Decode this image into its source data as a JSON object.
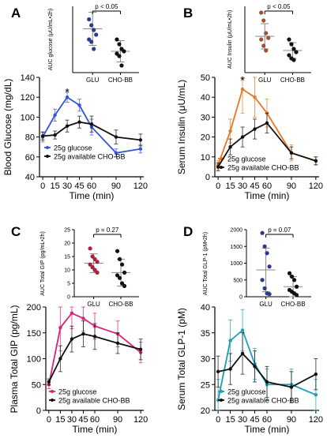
{
  "chart_data": [
    {
      "panel": "A",
      "inset": {
        "type": "scatter",
        "ylabel": "AUC glucose (μU/mL•2h)",
        "categories": [
          "GLU",
          "CHO-BB"
        ],
        "ylim": [
          0,
          2800
        ],
        "points": [
          [
            2250,
            2000,
            1800,
            1600,
            1400,
            1300,
            1000
          ],
          [
            1400,
            1200,
            1000,
            900,
            800,
            700,
            300
          ]
        ],
        "mean": [
          1850,
          900
        ],
        "sd": [
          700,
          450
        ],
        "p_text": "p < 0.05",
        "colors": [
          "#2e3a8c",
          "#111111"
        ]
      },
      "main": {
        "type": "line",
        "x": [
          0,
          15,
          30,
          45,
          60,
          90,
          120
        ],
        "xticks": [
          "0",
          "15",
          "30",
          "45",
          "60",
          "90",
          "120"
        ],
        "xlabel": "Time (min)",
        "ylabel": "Blood Glucose (mg/dL)",
        "ylim": [
          40,
          140
        ],
        "yticks": [
          40,
          60,
          80,
          100,
          120,
          140
        ],
        "series": [
          {
            "name": "25g glucose",
            "color": "#3355dd",
            "values": [
              80,
              102,
              120,
              112,
              90,
              64,
              68
            ],
            "err": [
              5,
              6,
              5,
              6,
              8,
              4,
              4
            ]
          },
          {
            "name": "25g available CHO-BB",
            "color": "#111111",
            "values": [
              81,
              82,
              91,
              95,
              93,
              80,
              77
            ],
            "err": [
              4,
              4,
              6,
              6,
              8,
              7,
              6
            ]
          }
        ],
        "annotations": [
          {
            "x": 30,
            "y": 126,
            "text": "*"
          }
        ]
      }
    },
    {
      "panel": "B",
      "inset": {
        "type": "scatter",
        "ylabel": "AUC Insulin (μU/mL•2h)",
        "categories": [
          "GLU",
          "CHO-BB"
        ],
        "ylim": [
          0,
          4200
        ],
        "points": [
          [
            3800,
            3300,
            2500,
            2200,
            2100,
            1700,
            1400
          ],
          [
            2100,
            1800,
            1500,
            1300,
            1100,
            900,
            800
          ]
        ],
        "mean": [
          2300,
          1400
        ],
        "sd": [
          800,
          500
        ],
        "p_text": "p < 0.05",
        "colors": [
          "#a0522d",
          "#111111"
        ]
      },
      "main": {
        "type": "line",
        "x": [
          0,
          15,
          30,
          45,
          60,
          90,
          120
        ],
        "xticks": [
          "0",
          "15",
          "30",
          "45",
          "60",
          "90",
          "120"
        ],
        "xlabel": "Time (min)",
        "ylabel": "Serum Insulin  (μU/mL)",
        "ylim": [
          0,
          50
        ],
        "yticks": [
          0,
          10,
          20,
          30,
          40,
          50
        ],
        "series": [
          {
            "name": "25g glucose",
            "color": "#e87722",
            "values": [
              6,
              23,
              44,
              40,
              32,
              12,
              8
            ],
            "err": [
              2,
              6,
              12,
              10,
              7,
              4,
              2
            ]
          },
          {
            "name": "25g available CHO-BB",
            "color": "#111111",
            "values": [
              5,
              15,
              20,
              24,
              27,
              12,
              8
            ],
            "err": [
              2,
              4,
              5,
              5,
              5,
              3,
              2
            ]
          }
        ],
        "annotations": [
          {
            "x": 30,
            "y": 49,
            "text": "*"
          }
        ]
      }
    },
    {
      "panel": "C",
      "inset": {
        "type": "scatter",
        "ylabel": "AUC Total GIP (pg/mL•2h)",
        "categories": [
          "GLU",
          "CHO-BB"
        ],
        "ylim": [
          0,
          25
        ],
        "yticks": [
          0,
          5,
          10,
          15,
          20,
          25
        ],
        "points": [
          [
            18,
            15,
            14,
            13,
            12,
            11,
            10,
            9
          ],
          [
            17,
            14,
            12,
            9,
            8,
            7,
            5,
            4
          ]
        ],
        "mean": [
          12.5,
          9
        ],
        "sd": [
          3.5,
          5
        ],
        "p_text": "p = 0.27",
        "colors": [
          "#a5243c",
          "#111111"
        ]
      },
      "main": {
        "type": "line",
        "x": [
          0,
          15,
          30,
          45,
          60,
          90,
          120
        ],
        "xticks": [
          "0",
          "15",
          "30",
          "45",
          "60",
          "90",
          "120"
        ],
        "xlabel": "Time (min)",
        "ylabel": "Plasma Total GIP  (pg/mL)",
        "ylim": [
          0,
          200
        ],
        "yticks": [
          0,
          50,
          100,
          150,
          200
        ],
        "series": [
          {
            "name": "25g glucose",
            "color": "#d6247a",
            "values": [
              50,
              160,
              188,
              178,
              163,
              148,
              112
            ],
            "err": [
              8,
              45,
              30,
              25,
              25,
              25,
              20
            ]
          },
          {
            "name": "25g available CHO-BB",
            "color": "#111111",
            "values": [
              55,
              100,
              138,
              148,
              143,
              130,
              118
            ],
            "err": [
              6,
              25,
              25,
              25,
              25,
              20,
              20
            ]
          }
        ]
      }
    },
    {
      "panel": "D",
      "inset": {
        "type": "scatter",
        "ylabel": "AUC Total GLP-1 (pM•2h)",
        "categories": [
          "GLU",
          "CHO-BB"
        ],
        "ylim": [
          0,
          2000
        ],
        "yticks": [
          0,
          500,
          1000,
          1500,
          2000
        ],
        "points": [
          [
            1900,
            1500,
            1300,
            900,
            500,
            250,
            100,
            80
          ],
          [
            700,
            600,
            500,
            300,
            200,
            150,
            100,
            50
          ]
        ],
        "mean": [
          800,
          300
        ],
        "sd": [
          650,
          300
        ],
        "p_text": "p = 0.07",
        "colors": [
          "#2e3a8c",
          "#111111"
        ]
      },
      "main": {
        "type": "line",
        "x": [
          0,
          15,
          30,
          45,
          60,
          90,
          120
        ],
        "xticks": [
          "0",
          "15",
          "30",
          "45",
          "60",
          "90",
          "120"
        ],
        "xlabel": "Time (min)",
        "ylabel": "Serum Total GLP-1 (pM)",
        "ylim": [
          20,
          40
        ],
        "yticks": [
          20,
          25,
          30,
          35,
          40
        ],
        "series": [
          {
            "name": "25g glucose",
            "color": "#1a9fb5",
            "values": [
              22,
              33.5,
              35.5,
              29,
              25,
              25,
              23
            ],
            "err": [
              4,
              4,
              4,
              3,
              3,
              3,
              3
            ]
          },
          {
            "name": "25g available CHO-BB",
            "color": "#111111",
            "values": [
              27.5,
              28,
              31,
              28.5,
              25.5,
              24.5,
              27
            ],
            "err": [
              3,
              3,
              4,
              3,
              3,
              3,
              3
            ]
          }
        ]
      }
    }
  ]
}
